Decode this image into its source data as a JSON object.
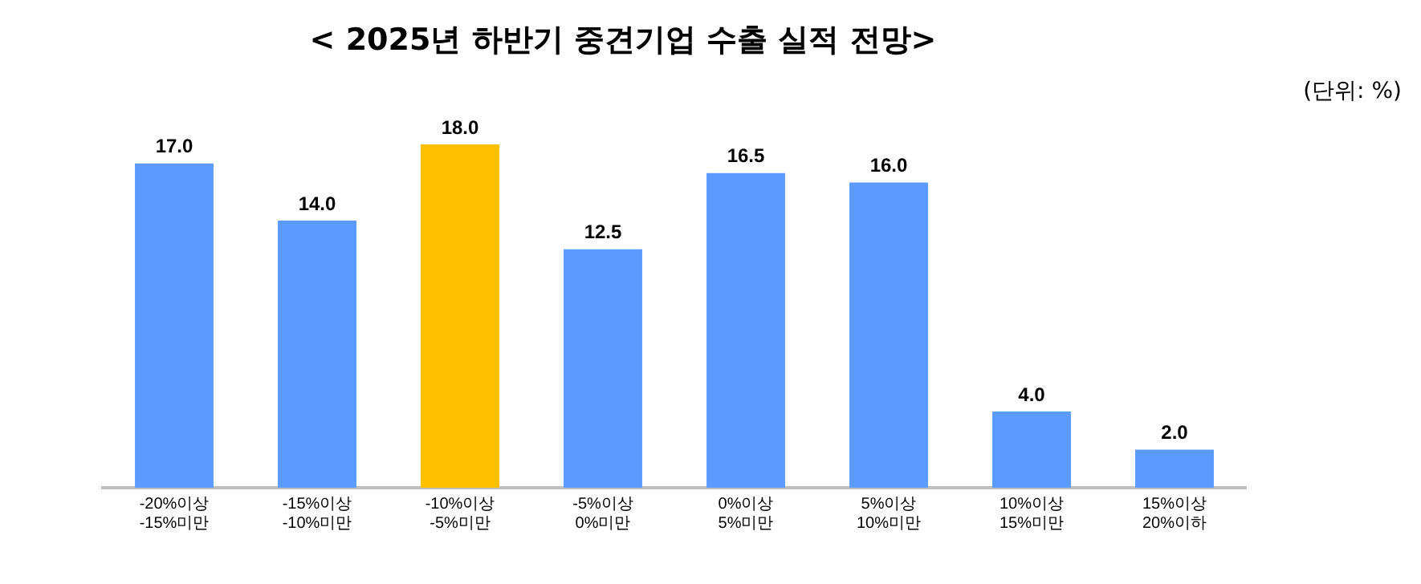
{
  "chart_data": {
    "type": "bar",
    "title": "< 2025년 하반기 중견기업 수출 실적 전망>",
    "annotations": [
      "(단위: %)"
    ],
    "categories": [
      "-20%이상\n-15%미만",
      "-15%이상\n-10%미만",
      "-10%이상\n-5%미만",
      "-5%이상\n0%미만",
      "0%이상\n5%미만",
      "5%이상\n10%미만",
      "10%이상\n15%미만",
      "15%이상\n20%이하"
    ],
    "values": [
      17.0,
      14.0,
      18.0,
      12.5,
      16.5,
      16.0,
      4.0,
      2.0
    ],
    "colors": [
      "#5b9bff",
      "#5b9bff",
      "#ffc000",
      "#5b9bff",
      "#5b9bff",
      "#5b9bff",
      "#5b9bff",
      "#5b9bff"
    ],
    "value_labels": [
      "17.0",
      "14.0",
      "18.0",
      "12.5",
      "16.5",
      "16.0",
      "4.0",
      "2.0"
    ],
    "grid": false,
    "legend": false,
    "tick_labels": "x"
  }
}
